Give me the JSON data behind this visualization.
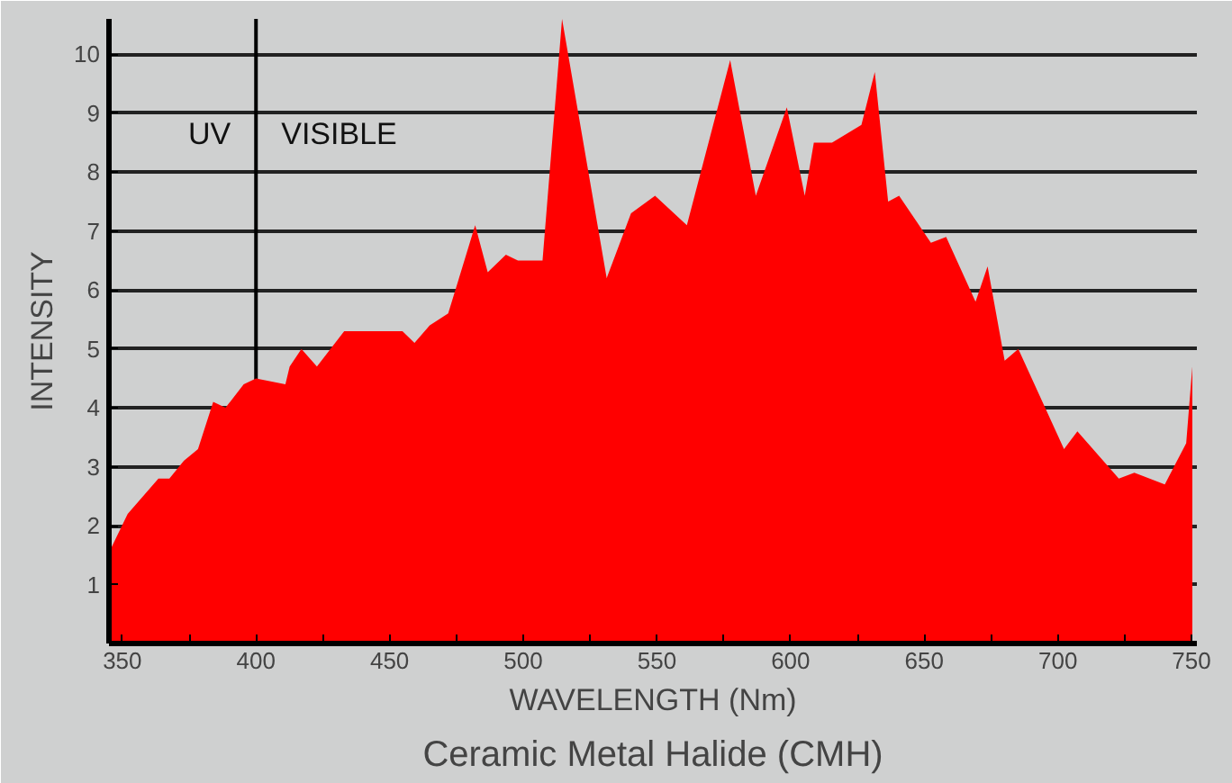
{
  "chart_data": {
    "type": "area",
    "title": "Ceramic Metal Halide (CMH)",
    "xlabel": "WAVELENGTH (Nm)",
    "ylabel": "INTENSITY",
    "x": [
      345.6,
      352,
      363.5,
      367.6,
      373,
      378.3,
      384,
      388.6,
      395.4,
      400,
      411,
      412.6,
      417,
      422.8,
      433,
      443.4,
      454.8,
      459.3,
      465,
      471.9,
      482,
      486.7,
      493.5,
      498,
      507.2,
      514.5,
      531.2,
      540.3,
      549.3,
      561.2,
      577.4,
      587,
      598.6,
      605.3,
      608.7,
      615.5,
      626.5,
      631.5,
      636.5,
      640.6,
      652.5,
      658.2,
      669.2,
      673.7,
      680.1,
      685.2,
      702.3,
      707.3,
      722.8,
      728.6,
      740,
      748,
      750.3
    ],
    "series": [
      {
        "color": "#ff0000",
        "values": [
          1.6,
          2.2,
          2.8,
          2.8,
          3.1,
          3.3,
          4.1,
          4.0,
          4.4,
          4.5,
          4.4,
          4.7,
          5.0,
          4.7,
          5.3,
          5.3,
          5.3,
          5.1,
          5.4,
          5.6,
          7.1,
          6.3,
          6.6,
          6.5,
          6.5,
          10.6,
          6.2,
          7.3,
          7.6,
          7.1,
          9.9,
          7.6,
          9.1,
          7.6,
          8.5,
          8.5,
          8.8,
          9.7,
          7.5,
          7.6,
          6.8,
          6.9,
          5.8,
          6.4,
          4.8,
          5.0,
          3.3,
          3.6,
          2.8,
          2.9,
          2.7,
          3.4,
          4.7
        ]
      }
    ],
    "xlim": [
      345,
      752
    ],
    "ylim": [
      0,
      10.6
    ],
    "xticks": [
      350,
      {
        "value": 375,
        "label": null
      },
      400,
      {
        "value": 425,
        "label": null
      },
      450,
      {
        "value": 475,
        "label": null
      },
      500,
      {
        "value": 525,
        "label": null
      },
      550,
      {
        "value": 575,
        "label": null
      },
      600,
      {
        "value": 625,
        "label": null
      },
      650,
      {
        "value": 675,
        "label": null
      },
      700,
      {
        "value": 725,
        "label": null
      },
      750
    ],
    "yticks": [
      1,
      2,
      3,
      4,
      5,
      6,
      7,
      8,
      9,
      10
    ],
    "grid": "y",
    "ref_lines": [
      {
        "axis": "x",
        "value": 400,
        "color": "#000000"
      }
    ],
    "annotations": [
      "UV",
      "VISIBLE"
    ]
  }
}
